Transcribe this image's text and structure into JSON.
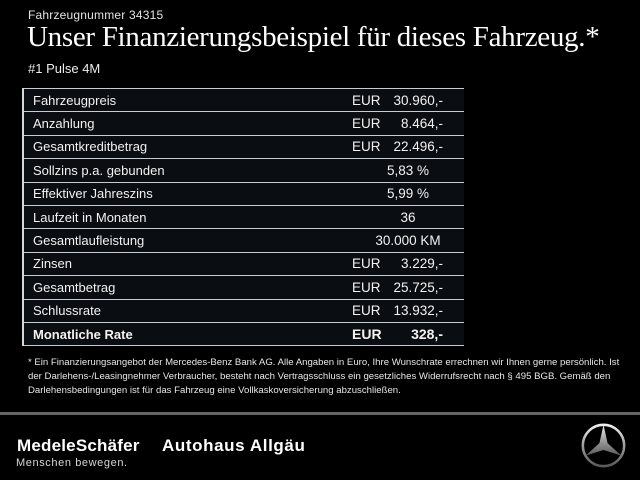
{
  "header": {
    "vehicle_number": "Fahrzeugnummer 34315",
    "title": "Unser Finanzierungsbeispiel für dieses Fahrzeug.*",
    "subtitle": "#1 Pulse 4M"
  },
  "table": {
    "rows": [
      {
        "label": "Fahrzeugpreis",
        "currency": "EUR",
        "value": "30.960,-",
        "bold": false
      },
      {
        "label": "Anzahlung",
        "currency": "EUR",
        "value": "8.464,-",
        "bold": false
      },
      {
        "label": "Gesamtkreditbetrag",
        "currency": "EUR",
        "value": "22.496,-",
        "bold": false
      },
      {
        "label": "Sollzins p.a. gebunden",
        "currency": "",
        "value": "5,83 %",
        "bold": false
      },
      {
        "label": "Effektiver Jahreszins",
        "currency": "",
        "value": "5,99 %",
        "bold": false
      },
      {
        "label": "Laufzeit in Monaten",
        "currency": "",
        "value": "36",
        "bold": false
      },
      {
        "label": "Gesamtlaufleistung",
        "currency": "",
        "value": "30.000 KM",
        "bold": false
      },
      {
        "label": "Zinsen",
        "currency": "EUR",
        "value": "3.229,-",
        "bold": false
      },
      {
        "label": "Gesamtbetrag",
        "currency": "EUR",
        "value": "25.725,-",
        "bold": false
      },
      {
        "label": "Schlussrate",
        "currency": "EUR",
        "value": "13.932,-",
        "bold": false
      },
      {
        "label": "Monatliche Rate",
        "currency": "EUR",
        "value": "328,-",
        "bold": true
      }
    ]
  },
  "footnote": "* Ein Finanzierungsangebot der Mercedes-Benz Bank AG. Alle Angaben in Euro, Ihre Wunschrate errechnen wir Ihnen gerne persönlich. Ist der Darlehens-/Leasingnehmer Verbraucher, besteht nach Vertragsschluss ein gesetzliches Widerrufsrecht nach § 495 BGB. Gemäß den Darlehensbedingungen ist für das Fahrzeug eine Vollkaskoversicherung abzuschließen.",
  "footer": {
    "dealer_logo": "MedeleSchäfer",
    "dealer_name": "Autohaus Allgäu",
    "tagline": "Menschen bewegen.",
    "brand_icon": "mercedes-star-icon"
  },
  "colors": {
    "background": "#000000",
    "table_line": "#c7ccd0",
    "table_bg": "#0a0d12",
    "divider": "#646464",
    "text": "#f2f2f2"
  }
}
